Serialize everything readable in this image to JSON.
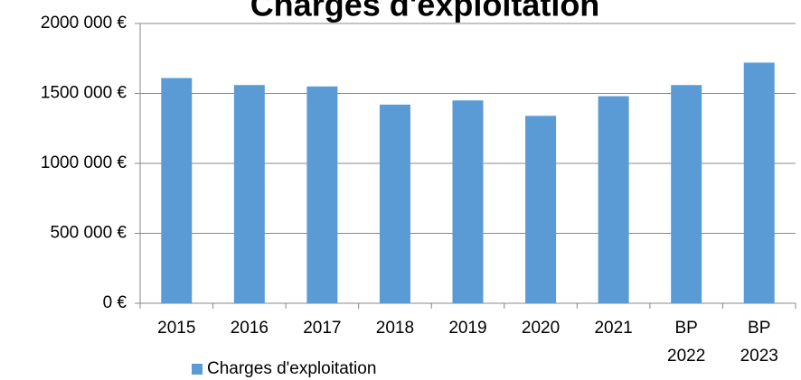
{
  "chart_data": {
    "type": "bar",
    "title": "Charges d'exploitation",
    "categories": [
      "2015",
      "2016",
      "2017",
      "2018",
      "2019",
      "2020",
      "2021",
      "BP 2022",
      "BP 2023"
    ],
    "series": [
      {
        "name": "Charges d'exploitation",
        "color": "#5b9bd5",
        "values": [
          1610000,
          1560000,
          1550000,
          1420000,
          1450000,
          1340000,
          1480000,
          1560000,
          1720000
        ]
      }
    ],
    "ylim": [
      0,
      2000000
    ],
    "yticks": [
      {
        "value": 0,
        "label": "0 €"
      },
      {
        "value": 500000,
        "label": "500 000 €"
      },
      {
        "value": 1000000,
        "label": "1000 000 €"
      },
      {
        "value": 1500000,
        "label": "1500 000 €"
      },
      {
        "value": 2000000,
        "label": "2000 000 €"
      }
    ],
    "grid": true,
    "legend": "bottom-left"
  }
}
